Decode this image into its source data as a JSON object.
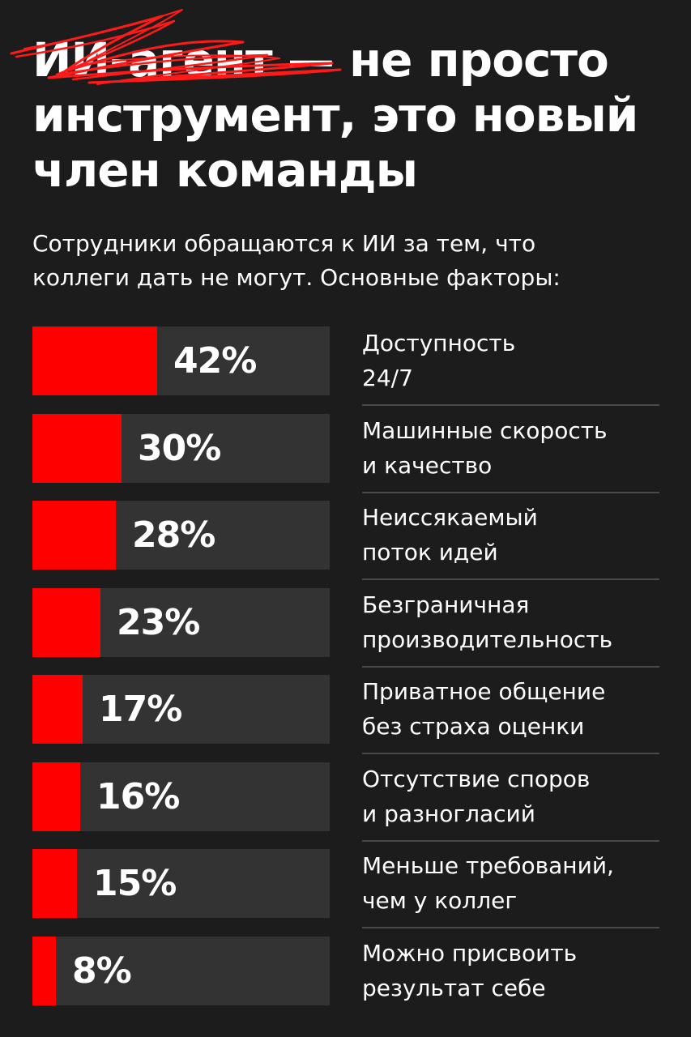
{
  "headline": {
    "lines": [
      "ИИ-агент — не просто",
      "инструмент, это новый",
      "член команды"
    ]
  },
  "subtitle": {
    "lines": [
      "Сотрудники обращаются к ИИ за тем, что",
      "коллеги дать не могут. Основные факторы:"
    ]
  },
  "colors": {
    "background": "#1c1c1c",
    "accent": "#ff0000",
    "bar_track": "#333333",
    "divider": "#4a4a4a",
    "text": "#ffffff"
  },
  "chart_data": {
    "type": "bar",
    "orientation": "horizontal",
    "xlim": [
      0,
      100
    ],
    "categories": [
      [
        "Доступность",
        "24/7"
      ],
      [
        "Машинные скорость",
        "и качество"
      ],
      [
        "Неиссякаемый",
        "поток идей"
      ],
      [
        "Безграничная",
        "производительность"
      ],
      [
        "Приватное общение",
        "без страха оценки"
      ],
      [
        "Отсутствие споров",
        "и разногласий"
      ],
      [
        "Меньше требований,",
        "чем у коллег"
      ],
      [
        "Можно присвоить",
        "результат себе"
      ]
    ],
    "values": [
      42,
      30,
      28,
      23,
      17,
      16,
      15,
      8
    ],
    "value_labels": [
      "42%",
      "30%",
      "28%",
      "23%",
      "17%",
      "16%",
      "15%",
      "8%"
    ]
  }
}
